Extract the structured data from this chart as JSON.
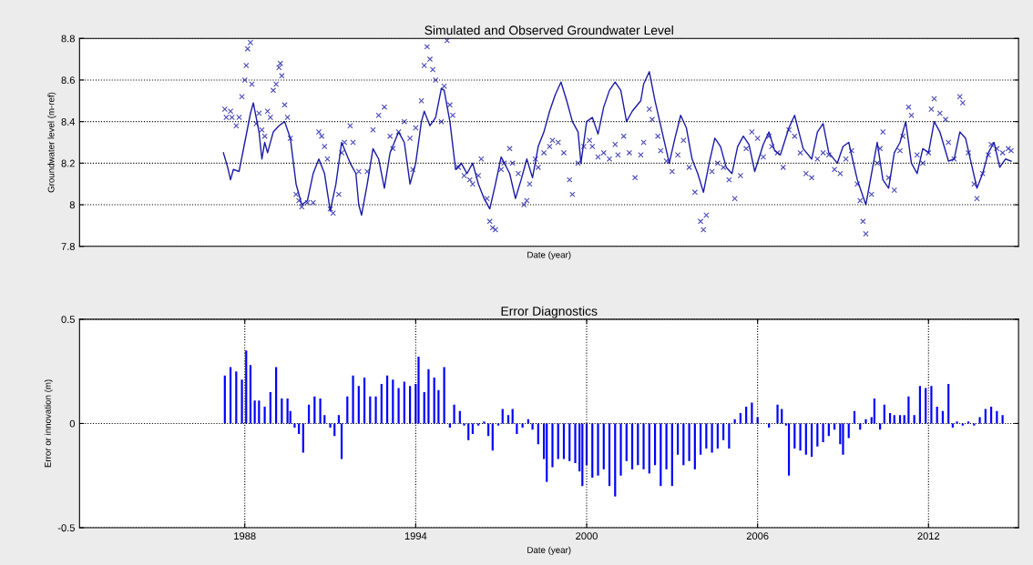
{
  "chart_data": [
    {
      "type": "line",
      "title": "Simulated and Observed Groundwater Level",
      "xlabel": "Date (year)",
      "ylabel": "Groundwater level (m-ref)",
      "xlim": [
        1982.2,
        2015.16
      ],
      "ylim": [
        7.8,
        8.8
      ],
      "yticks": [
        7.8,
        8,
        8.2,
        8.4,
        8.6,
        8.8
      ],
      "tick_labels": "y",
      "grid": "y",
      "series": [
        {
          "type": "line",
          "color": "#1a1aa8",
          "marker": "none",
          "line_style": "solid",
          "x": [
            1987.25,
            1987.4,
            1987.5,
            1987.6,
            1987.8,
            1988.0,
            1988.2,
            1988.3,
            1988.5,
            1988.6,
            1988.7,
            1988.8,
            1989.0,
            1989.2,
            1989.4,
            1989.6,
            1989.8,
            1990.0,
            1990.2,
            1990.4,
            1990.6,
            1990.8,
            1991.0,
            1991.2,
            1991.4,
            1991.7,
            1991.9,
            1992.0,
            1992.1,
            1992.3,
            1992.5,
            1992.7,
            1992.9,
            1993.1,
            1993.4,
            1993.6,
            1993.8,
            1994.0,
            1994.2,
            1994.3,
            1994.5,
            1994.7,
            1994.9,
            1995.0,
            1995.2,
            1995.4,
            1995.6,
            1995.8,
            1996.0,
            1996.2,
            1996.4,
            1996.6,
            1996.8,
            1997.0,
            1997.3,
            1997.5,
            1997.7,
            1997.9,
            1998.1,
            1998.3,
            1998.5,
            1998.7,
            1998.9,
            1999.1,
            1999.3,
            1999.5,
            1999.7,
            1999.8,
            2000.0,
            2000.2,
            2000.4,
            2000.6,
            2000.8,
            2001.0,
            2001.2,
            2001.4,
            2001.6,
            2001.9,
            2002.0,
            2002.2,
            2002.4,
            2002.6,
            2002.9,
            2003.1,
            2003.3,
            2003.5,
            2003.7,
            2003.9,
            2004.1,
            2004.3,
            2004.5,
            2004.7,
            2004.9,
            2005.1,
            2005.3,
            2005.5,
            2005.7,
            2005.9,
            2006.2,
            2006.4,
            2006.6,
            2006.8,
            2007.1,
            2007.3,
            2007.6,
            2007.9,
            2008.1,
            2008.3,
            2008.5,
            2008.8,
            2009.0,
            2009.2,
            2009.5,
            2009.8,
            2010.0,
            2010.2,
            2010.4,
            2010.6,
            2010.8,
            2011.0,
            2011.2,
            2011.4,
            2011.6,
            2011.8,
            2012.0,
            2012.2,
            2012.4,
            2012.7,
            2012.9,
            2013.1,
            2013.3,
            2013.5,
            2013.7,
            2013.9,
            2014.1,
            2014.3,
            2014.5,
            2014.7,
            2014.9
          ],
          "values": [
            8.25,
            8.18,
            8.12,
            8.17,
            8.16,
            8.3,
            8.44,
            8.49,
            8.35,
            8.22,
            8.3,
            8.25,
            8.35,
            8.38,
            8.4,
            8.32,
            8.1,
            8.0,
            8.02,
            8.15,
            8.22,
            8.15,
            7.97,
            8.1,
            8.3,
            8.2,
            8.15,
            8.0,
            7.95,
            8.1,
            8.27,
            8.22,
            8.08,
            8.25,
            8.35,
            8.3,
            8.1,
            8.2,
            8.4,
            8.45,
            8.38,
            8.42,
            8.56,
            8.55,
            8.4,
            8.17,
            8.2,
            8.15,
            8.2,
            8.1,
            8.03,
            7.98,
            8.1,
            8.23,
            8.15,
            8.03,
            8.12,
            8.22,
            8.13,
            8.28,
            8.35,
            8.45,
            8.53,
            8.59,
            8.5,
            8.4,
            8.35,
            8.2,
            8.4,
            8.42,
            8.34,
            8.47,
            8.55,
            8.59,
            8.55,
            8.4,
            8.45,
            8.5,
            8.58,
            8.64,
            8.5,
            8.38,
            8.2,
            8.32,
            8.43,
            8.37,
            8.22,
            8.15,
            8.06,
            8.2,
            8.32,
            8.28,
            8.18,
            8.15,
            8.28,
            8.33,
            8.29,
            8.16,
            8.29,
            8.35,
            8.26,
            8.24,
            8.37,
            8.43,
            8.27,
            8.22,
            8.35,
            8.39,
            8.25,
            8.2,
            8.28,
            8.3,
            8.12,
            8.0,
            8.15,
            8.3,
            8.12,
            8.08,
            8.25,
            8.3,
            8.4,
            8.2,
            8.15,
            8.27,
            8.25,
            8.4,
            8.35,
            8.21,
            8.22,
            8.35,
            8.32,
            8.2,
            8.08,
            8.15,
            8.25,
            8.3,
            8.18,
            8.22,
            8.21
          ]
        },
        {
          "type": "scatter",
          "color": "#4a4ab8",
          "marker": "cross",
          "x": [
            1987.3,
            1987.35,
            1987.5,
            1987.55,
            1987.7,
            1987.8,
            1987.9,
            1988.0,
            1988.05,
            1988.1,
            1988.2,
            1988.25,
            1988.4,
            1988.5,
            1988.6,
            1988.7,
            1988.8,
            1988.9,
            1989.0,
            1989.1,
            1989.2,
            1989.25,
            1989.3,
            1989.4,
            1989.5,
            1989.6,
            1989.8,
            1989.9,
            1990.0,
            1990.2,
            1990.4,
            1990.6,
            1990.7,
            1990.8,
            1990.9,
            1991.0,
            1991.1,
            1991.3,
            1991.4,
            1991.5,
            1991.7,
            1991.8,
            1992.0,
            1992.3,
            1992.5,
            1992.7,
            1992.9,
            1993.1,
            1993.2,
            1993.4,
            1993.6,
            1993.8,
            1993.9,
            1994.0,
            1994.2,
            1994.3,
            1994.4,
            1994.5,
            1994.6,
            1994.7,
            1994.9,
            1995.0,
            1995.1,
            1995.2,
            1995.3,
            1995.5,
            1995.7,
            1995.9,
            1996.0,
            1996.2,
            1996.3,
            1996.5,
            1996.6,
            1996.7,
            1996.8,
            1997.0,
            1997.1,
            1997.3,
            1997.4,
            1997.6,
            1997.8,
            1997.9,
            1998.0,
            1998.2,
            1998.3,
            1998.5,
            1998.7,
            1998.8,
            1999.0,
            1999.2,
            1999.4,
            1999.5,
            1999.7,
            1999.9,
            2000.1,
            2000.2,
            2000.4,
            2000.6,
            2000.8,
            2001.0,
            2001.1,
            2001.3,
            2001.5,
            2001.7,
            2001.9,
            2002.0,
            2002.2,
            2002.3,
            2002.5,
            2002.6,
            2002.8,
            2003.0,
            2003.2,
            2003.4,
            2003.6,
            2003.8,
            2004.0,
            2004.1,
            2004.2,
            2004.4,
            2004.6,
            2004.8,
            2005.0,
            2005.2,
            2005.4,
            2005.6,
            2005.8,
            2006.0,
            2006.2,
            2006.4,
            2006.5,
            2006.7,
            2006.9,
            2007.1,
            2007.3,
            2007.5,
            2007.7,
            2007.9,
            2008.1,
            2008.3,
            2008.5,
            2008.7,
            2008.9,
            2009.1,
            2009.3,
            2009.5,
            2009.6,
            2009.7,
            2009.8,
            2010.0,
            2010.2,
            2010.3,
            2010.4,
            2010.6,
            2010.8,
            2011.0,
            2011.1,
            2011.3,
            2011.4,
            2011.6,
            2011.8,
            2012.0,
            2012.1,
            2012.2,
            2012.4,
            2012.6,
            2012.7,
            2012.9,
            2013.1,
            2013.2,
            2013.4,
            2013.6,
            2013.7,
            2013.9,
            2014.1,
            2014.2,
            2014.4,
            2014.6,
            2014.8,
            2014.9
          ],
          "values": [
            8.46,
            8.42,
            8.45,
            8.42,
            8.38,
            8.42,
            8.52,
            8.6,
            8.67,
            8.75,
            8.78,
            8.58,
            8.39,
            8.44,
            8.36,
            8.33,
            8.45,
            8.42,
            8.55,
            8.58,
            8.66,
            8.68,
            8.62,
            8.48,
            8.42,
            8.32,
            8.05,
            8.02,
            7.99,
            8.01,
            8.01,
            8.35,
            8.33,
            8.28,
            8.22,
            7.98,
            7.96,
            8.05,
            8.25,
            8.3,
            8.38,
            8.3,
            8.16,
            8.16,
            8.36,
            8.43,
            8.47,
            8.33,
            8.27,
            8.35,
            8.4,
            8.32,
            8.17,
            8.37,
            8.5,
            8.67,
            8.76,
            8.7,
            8.65,
            8.6,
            8.4,
            8.57,
            8.79,
            8.48,
            8.43,
            8.18,
            8.14,
            8.12,
            8.1,
            8.14,
            8.22,
            8.03,
            7.92,
            7.89,
            7.88,
            8.17,
            8.2,
            8.27,
            8.2,
            8.15,
            8.0,
            8.02,
            8.1,
            8.22,
            8.18,
            8.25,
            8.28,
            8.31,
            8.3,
            8.25,
            8.12,
            8.05,
            8.2,
            8.28,
            8.31,
            8.28,
            8.23,
            8.25,
            8.22,
            8.29,
            8.24,
            8.33,
            8.25,
            8.13,
            8.24,
            8.3,
            8.46,
            8.41,
            8.33,
            8.26,
            8.21,
            8.16,
            8.24,
            8.31,
            8.18,
            8.06,
            7.92,
            7.88,
            7.95,
            8.16,
            8.2,
            8.18,
            8.12,
            8.03,
            8.14,
            8.27,
            8.35,
            8.32,
            8.23,
            8.33,
            8.28,
            8.25,
            8.18,
            8.36,
            8.33,
            8.25,
            8.15,
            8.13,
            8.22,
            8.25,
            8.24,
            8.17,
            8.15,
            8.22,
            8.26,
            8.1,
            8.02,
            7.92,
            7.86,
            8.05,
            8.2,
            8.27,
            8.35,
            8.13,
            8.07,
            8.26,
            8.33,
            8.47,
            8.43,
            8.24,
            8.2,
            8.25,
            8.46,
            8.51,
            8.44,
            8.41,
            8.3,
            8.22,
            8.52,
            8.49,
            8.25,
            8.1,
            8.03,
            8.15,
            8.24,
            8.29,
            8.27,
            8.25,
            8.27,
            8.26
          ]
        }
      ]
    },
    {
      "type": "bar",
      "title": "Error Diagnostics",
      "xlabel": "Date (year)",
      "ylabel": "Error or innovation (m)",
      "color": "#0000ff",
      "xlim": [
        1982.2,
        2015.16
      ],
      "xticks": [
        1988,
        1994,
        2000,
        2006,
        2012
      ],
      "ylim": [
        -0.5,
        0.5
      ],
      "yticks": [
        -0.5,
        0,
        0.5
      ],
      "grid": true,
      "x": [
        1987.3,
        1987.5,
        1987.7,
        1987.9,
        1988.05,
        1988.2,
        1988.35,
        1988.5,
        1988.7,
        1988.9,
        1989.1,
        1989.3,
        1989.5,
        1989.6,
        1989.75,
        1989.9,
        1990.05,
        1990.25,
        1990.45,
        1990.65,
        1990.8,
        1991.0,
        1991.15,
        1991.3,
        1991.4,
        1991.6,
        1991.8,
        1992.0,
        1992.2,
        1992.4,
        1992.6,
        1992.8,
        1993.0,
        1993.2,
        1993.4,
        1993.6,
        1993.8,
        1994.0,
        1994.1,
        1994.3,
        1994.45,
        1994.65,
        1994.8,
        1995.0,
        1995.2,
        1995.35,
        1995.55,
        1995.7,
        1995.85,
        1996.0,
        1996.2,
        1996.4,
        1996.55,
        1996.7,
        1996.9,
        1997.05,
        1997.25,
        1997.4,
        1997.55,
        1997.75,
        1997.95,
        1998.1,
        1998.3,
        1998.5,
        1998.6,
        1998.8,
        1999.0,
        1999.2,
        1999.4,
        1999.6,
        1999.75,
        1999.85,
        2000.0,
        2000.2,
        2000.4,
        2000.6,
        2000.8,
        2001.0,
        2001.2,
        2001.4,
        2001.6,
        2001.8,
        2002.0,
        2002.2,
        2002.4,
        2002.6,
        2002.8,
        2003.0,
        2003.2,
        2003.4,
        2003.6,
        2003.8,
        2004.0,
        2004.2,
        2004.4,
        2004.6,
        2004.8,
        2005.0,
        2005.2,
        2005.4,
        2005.6,
        2005.8,
        2006.0,
        2006.4,
        2006.7,
        2006.85,
        2007.0,
        2007.1,
        2007.3,
        2007.5,
        2007.7,
        2007.9,
        2008.1,
        2008.3,
        2008.5,
        2008.7,
        2008.9,
        2009.0,
        2009.2,
        2009.4,
        2009.6,
        2009.8,
        2010.0,
        2010.1,
        2010.3,
        2010.45,
        2010.65,
        2010.8,
        2011.0,
        2011.15,
        2011.3,
        2011.5,
        2011.7,
        2011.9,
        2012.1,
        2012.3,
        2012.5,
        2012.7,
        2012.85,
        2013.0,
        2013.2,
        2013.4,
        2013.6,
        2013.8,
        2014.0,
        2014.2,
        2014.4,
        2014.6
      ],
      "values": [
        0.23,
        0.27,
        0.25,
        0.21,
        0.35,
        0.28,
        0.11,
        0.11,
        0.08,
        0.15,
        0.27,
        0.12,
        0.12,
        0.06,
        -0.02,
        -0.05,
        -0.14,
        0.09,
        0.13,
        0.12,
        0.04,
        -0.02,
        -0.06,
        0.04,
        -0.17,
        0.13,
        0.23,
        0.18,
        0.22,
        0.13,
        0.13,
        0.19,
        0.23,
        0.21,
        0.17,
        0.2,
        0.18,
        0.19,
        0.32,
        0.15,
        0.26,
        0.22,
        0.16,
        0.27,
        -0.02,
        0.09,
        0.06,
        -0.01,
        -0.08,
        -0.05,
        -0.01,
        0.01,
        -0.06,
        -0.13,
        -0.01,
        0.07,
        0.04,
        0.07,
        -0.05,
        -0.02,
        0.02,
        -0.03,
        -0.1,
        -0.17,
        -0.28,
        -0.21,
        -0.17,
        -0.17,
        -0.18,
        -0.19,
        -0.23,
        -0.3,
        -0.2,
        -0.26,
        -0.25,
        -0.22,
        -0.3,
        -0.35,
        -0.25,
        -0.18,
        -0.22,
        -0.2,
        -0.22,
        -0.24,
        -0.2,
        -0.3,
        -0.22,
        -0.3,
        -0.15,
        -0.2,
        -0.18,
        -0.22,
        -0.15,
        -0.12,
        -0.14,
        -0.12,
        -0.08,
        -0.12,
        0.02,
        0.05,
        0.08,
        0.1,
        0.03,
        -0.02,
        0.09,
        0.07,
        -0.01,
        -0.25,
        -0.12,
        -0.13,
        -0.15,
        -0.16,
        -0.11,
        -0.09,
        -0.06,
        -0.03,
        -0.1,
        -0.15,
        -0.07,
        0.06,
        -0.03,
        0.02,
        0.03,
        0.12,
        -0.03,
        0.09,
        0.05,
        0.04,
        0.04,
        0.04,
        0.13,
        0.04,
        0.18,
        0.17,
        0.18,
        0.08,
        0.06,
        0.19,
        -0.02,
        0.01,
        -0.01,
        0.01,
        -0.01,
        0.03,
        0.07,
        0.08,
        0.06,
        0.04
      ]
    }
  ]
}
